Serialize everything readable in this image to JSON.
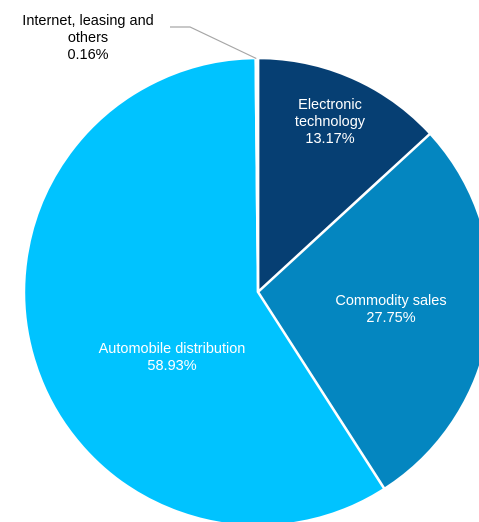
{
  "chart_data": {
    "type": "pie",
    "title": "",
    "start_angle_deg": 0,
    "direction": "clockwise",
    "slices": [
      {
        "name": "Electronic technology",
        "label_lines": [
          "Electronic",
          "technology"
        ],
        "percent_label": "13.17%",
        "value": 13.17,
        "color": "#063f73",
        "label_color": "#ffffff"
      },
      {
        "name": "Commodity sales",
        "label_lines": [
          "Commodity sales"
        ],
        "percent_label": "27.75%",
        "value": 27.75,
        "color": "#0486c0",
        "label_color": "#ffffff"
      },
      {
        "name": "Automobile distribution",
        "label_lines": [
          "Automobile distribution"
        ],
        "percent_label": "58.93%",
        "value": 58.93,
        "color": "#00c3ff",
        "label_color": "#ffffff"
      },
      {
        "name": "Internet, leasing and others",
        "label_lines": [
          "Internet, leasing and",
          "others"
        ],
        "percent_label": "0.16%",
        "value": 0.16,
        "color": "#2f6ea5",
        "label_color": "#000000"
      }
    ]
  }
}
